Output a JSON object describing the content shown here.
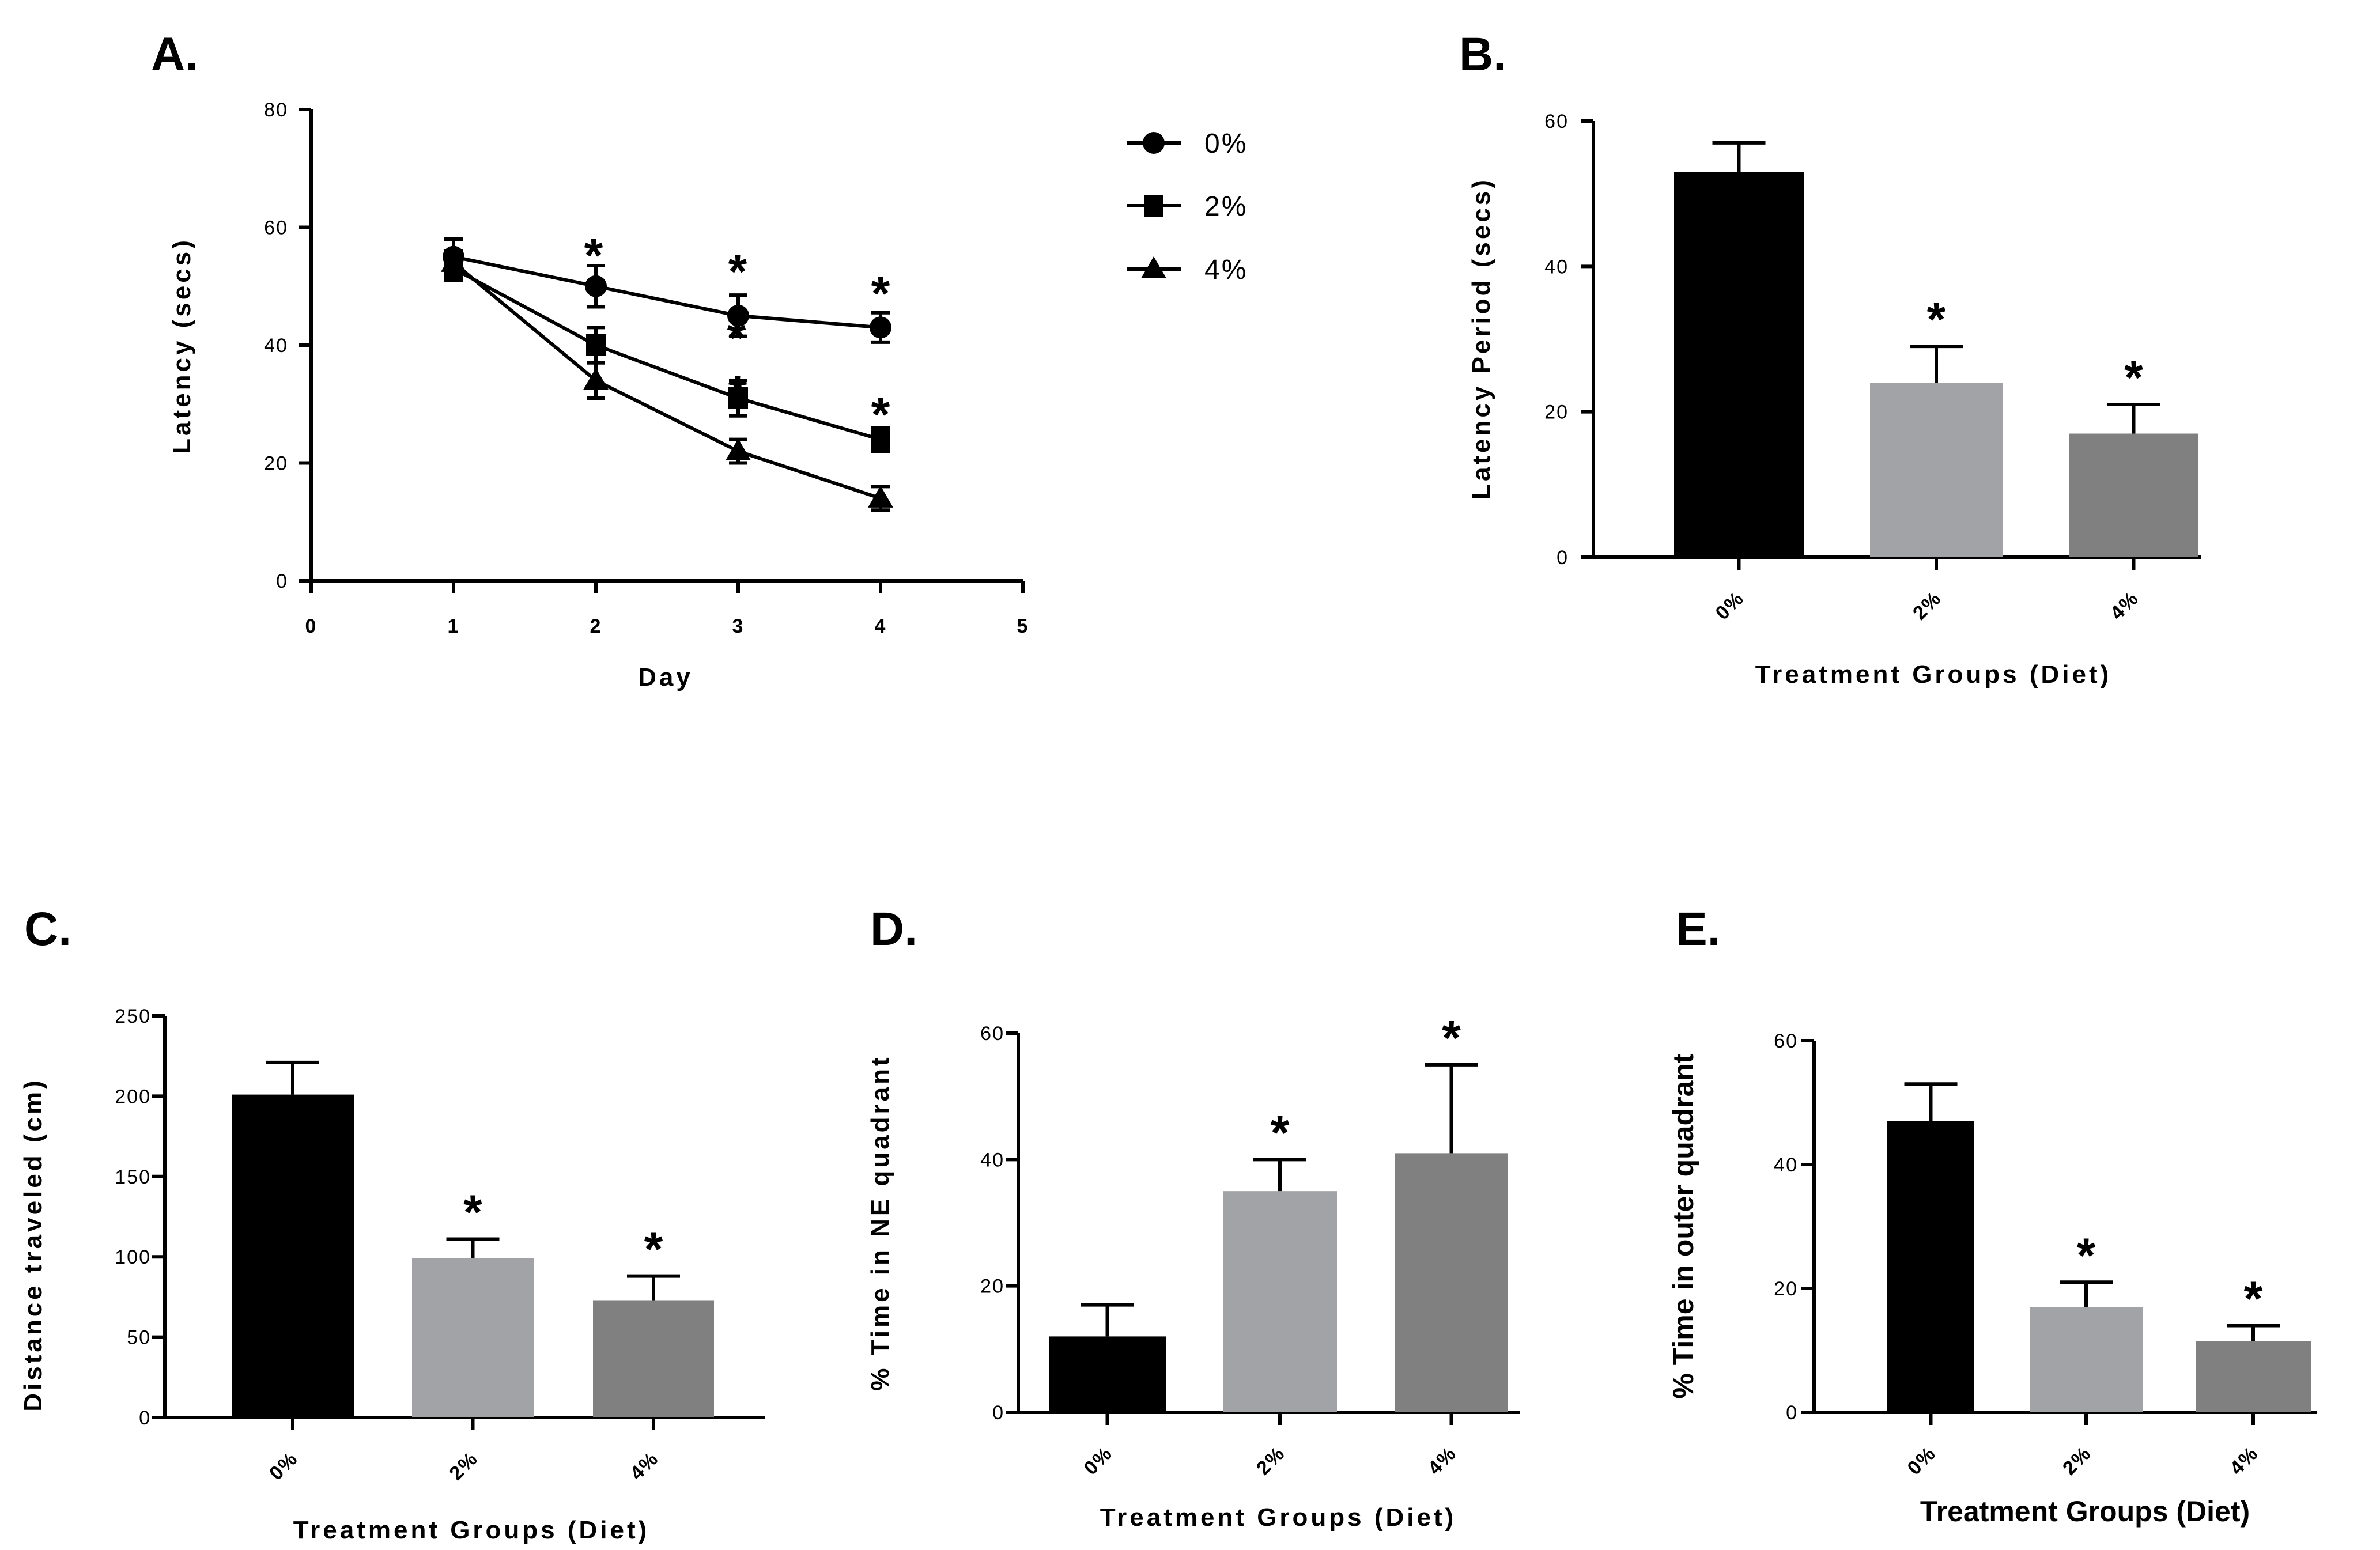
{
  "chart_data": [
    {
      "panel": "A.",
      "type": "line",
      "xlabel": "Day",
      "ylabel": "Latency (secs)",
      "xlim": [
        0,
        5
      ],
      "ylim": [
        0,
        80
      ],
      "xticks": [
        "0",
        "1",
        "2",
        "3",
        "4",
        "5"
      ],
      "yticks": [
        "0",
        "20",
        "40",
        "60",
        "80"
      ],
      "x": [
        1,
        2,
        3,
        4
      ],
      "series": [
        {
          "name": "0%",
          "marker": "circle",
          "values": [
            55,
            50,
            45,
            43
          ],
          "errors": [
            3,
            3.5,
            3.5,
            2.5
          ]
        },
        {
          "name": "2%",
          "marker": "square",
          "values": [
            53,
            40,
            31,
            24
          ],
          "errors": [
            2,
            3,
            3,
            2
          ]
        },
        {
          "name": "4%",
          "marker": "triangle",
          "values": [
            54,
            34,
            22,
            14
          ],
          "errors": [
            2,
            3,
            2,
            2
          ]
        }
      ],
      "significance": [
        "*",
        "*",
        "*",
        "*",
        "*",
        "*"
      ]
    },
    {
      "panel": "B.",
      "type": "bar",
      "xlabel": "Treatment Groups (Diet)",
      "ylabel": "Latency Period (secs)",
      "ylim": [
        0,
        60
      ],
      "yticks": [
        "0",
        "20",
        "40",
        "60"
      ],
      "categories": [
        "0%",
        "2%",
        "4%"
      ],
      "values": [
        53,
        24,
        17
      ],
      "errors": [
        4,
        5,
        4
      ],
      "colors": [
        "#000000",
        "#a2a3a7",
        "#808080"
      ],
      "significance": [
        "",
        "*",
        "*"
      ]
    },
    {
      "panel": "C.",
      "type": "bar",
      "xlabel": "Treatment Groups (Diet)",
      "ylabel": "Distance traveled (cm)",
      "ylim": [
        0,
        250
      ],
      "yticks": [
        "0",
        "50",
        "100",
        "150",
        "200",
        "250"
      ],
      "categories": [
        "0%",
        "2%",
        "4%"
      ],
      "values": [
        201,
        99,
        73
      ],
      "errors": [
        20,
        12,
        15
      ],
      "colors": [
        "#000000",
        "#a2a3a7",
        "#808080"
      ],
      "significance": [
        "",
        "*",
        "*"
      ]
    },
    {
      "panel": "D.",
      "type": "bar",
      "xlabel": "Treatment Groups (Diet)",
      "ylabel": "% Time in NE quadrant",
      "ylim": [
        0,
        60
      ],
      "yticks": [
        "0",
        "20",
        "40",
        "60"
      ],
      "categories": [
        "0%",
        "2%",
        "4%"
      ],
      "values": [
        12,
        35,
        41
      ],
      "errors": [
        5,
        5,
        14
      ],
      "colors": [
        "#000000",
        "#a2a3a7",
        "#808080"
      ],
      "significance": [
        "",
        "*",
        "*"
      ]
    },
    {
      "panel": "E.",
      "type": "bar",
      "xlabel": "Treatment Groups (Diet)",
      "ylabel": "% Time in outer quadrant",
      "ylim": [
        0,
        60
      ],
      "yticks": [
        "0",
        "20",
        "40",
        "60"
      ],
      "categories": [
        "0%",
        "2%",
        "4%"
      ],
      "values": [
        47,
        17,
        11.5
      ],
      "errors": [
        6,
        4,
        2.5
      ],
      "colors": [
        "#000000",
        "#a2a3a7",
        "#808080"
      ],
      "significance": [
        "",
        "*",
        "*"
      ]
    }
  ]
}
